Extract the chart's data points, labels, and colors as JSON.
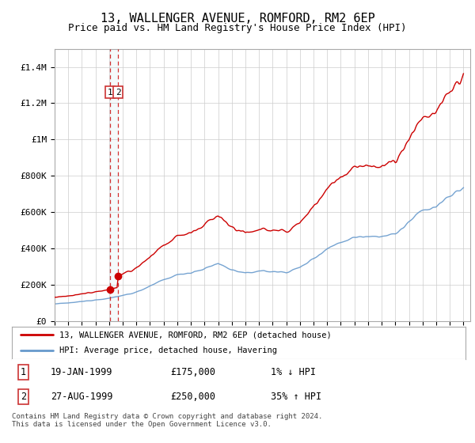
{
  "title": "13, WALLENGER AVENUE, ROMFORD, RM2 6EP",
  "subtitle": "Price paid vs. HM Land Registry's House Price Index (HPI)",
  "title_fontsize": 11,
  "subtitle_fontsize": 9,
  "ylim": [
    0,
    1500000
  ],
  "yticks": [
    0,
    200000,
    400000,
    600000,
    800000,
    1000000,
    1200000,
    1400000
  ],
  "ytick_labels": [
    "£0",
    "£200K",
    "£400K",
    "£600K",
    "£800K",
    "£1M",
    "£1.2M",
    "£1.4M"
  ],
  "xlim_start": 1995.0,
  "xlim_end": 2025.5,
  "line_color_property": "#cc0000",
  "line_color_hpi": "#6699cc",
  "transaction1_x": 1999.05,
  "transaction1_price": 175000,
  "transaction1_date": "19-JAN-1999",
  "transaction1_hpi": "1% ↓ HPI",
  "transaction2_x": 1999.65,
  "transaction2_price": 250000,
  "transaction2_date": "27-AUG-1999",
  "transaction2_hpi": "35% ↑ HPI",
  "legend_label_property": "13, WALLENGER AVENUE, ROMFORD, RM2 6EP (detached house)",
  "legend_label_hpi": "HPI: Average price, detached house, Havering",
  "footer": "Contains HM Land Registry data © Crown copyright and database right 2024.\nThis data is licensed under the Open Government Licence v3.0.",
  "background_color": "#ffffff",
  "grid_color": "#cccccc",
  "years_hpi": [
    1995,
    1995.08,
    1995.17,
    1995.25,
    1995.33,
    1995.42,
    1995.5,
    1995.58,
    1995.67,
    1995.75,
    1995.83,
    1995.92,
    1996,
    1996.08,
    1996.17,
    1996.25,
    1996.33,
    1996.42,
    1996.5,
    1996.58,
    1996.67,
    1996.75,
    1996.83,
    1996.92,
    1997,
    1997.08,
    1997.17,
    1997.25,
    1997.33,
    1997.42,
    1997.5,
    1997.58,
    1997.67,
    1997.75,
    1997.83,
    1997.92,
    1998,
    1998.08,
    1998.17,
    1998.25,
    1998.33,
    1998.42,
    1998.5,
    1998.58,
    1998.67,
    1998.75,
    1998.83,
    1998.92,
    1999,
    1999.08,
    1999.17,
    1999.25,
    1999.33,
    1999.42,
    1999.5,
    1999.58,
    1999.67,
    1999.75,
    1999.83,
    1999.92,
    2000,
    2000.08,
    2000.17,
    2000.25,
    2000.33,
    2000.42,
    2000.5,
    2000.58,
    2000.67,
    2000.75,
    2000.83,
    2000.92,
    2001,
    2001.08,
    2001.17,
    2001.25,
    2001.33,
    2001.42,
    2001.5,
    2001.58,
    2001.67,
    2001.75,
    2001.83,
    2001.92,
    2002,
    2002.08,
    2002.17,
    2002.25,
    2002.33,
    2002.42,
    2002.5,
    2002.58,
    2002.67,
    2002.75,
    2002.83,
    2002.92,
    2003,
    2003.08,
    2003.17,
    2003.25,
    2003.33,
    2003.42,
    2003.5,
    2003.58,
    2003.67,
    2003.75,
    2003.83,
    2003.92,
    2004,
    2004.08,
    2004.17,
    2004.25,
    2004.33,
    2004.42,
    2004.5,
    2004.58,
    2004.67,
    2004.75,
    2004.83,
    2004.92,
    2005,
    2005.08,
    2005.17,
    2005.25,
    2005.33,
    2005.42,
    2005.5,
    2005.58,
    2005.67,
    2005.75,
    2005.83,
    2005.92,
    2006,
    2006.08,
    2006.17,
    2006.25,
    2006.33,
    2006.42,
    2006.5,
    2006.58,
    2006.67,
    2006.75,
    2006.83,
    2006.92,
    2007,
    2007.08,
    2007.17,
    2007.25,
    2007.33,
    2007.42,
    2007.5,
    2007.58,
    2007.67,
    2007.75,
    2007.83,
    2007.92,
    2008,
    2008.08,
    2008.17,
    2008.25,
    2008.33,
    2008.42,
    2008.5,
    2008.58,
    2008.67,
    2008.75,
    2008.83,
    2008.92,
    2009,
    2009.08,
    2009.17,
    2009.25,
    2009.33,
    2009.42,
    2009.5,
    2009.58,
    2009.67,
    2009.75,
    2009.83,
    2009.92,
    2010,
    2010.08,
    2010.17,
    2010.25,
    2010.33,
    2010.42,
    2010.5,
    2010.58,
    2010.67,
    2010.75,
    2010.83,
    2010.92,
    2011,
    2011.08,
    2011.17,
    2011.25,
    2011.33,
    2011.42,
    2011.5,
    2011.58,
    2011.67,
    2011.75,
    2011.83,
    2011.92,
    2012,
    2012.08,
    2012.17,
    2012.25,
    2012.33,
    2012.42,
    2012.5,
    2012.58,
    2012.67,
    2012.75,
    2012.83,
    2012.92,
    2013,
    2013.08,
    2013.17,
    2013.25,
    2013.33,
    2013.42,
    2013.5,
    2013.58,
    2013.67,
    2013.75,
    2013.83,
    2013.92,
    2014,
    2014.08,
    2014.17,
    2014.25,
    2014.33,
    2014.42,
    2014.5,
    2014.58,
    2014.67,
    2014.75,
    2014.83,
    2014.92,
    2015,
    2015.08,
    2015.17,
    2015.25,
    2015.33,
    2015.42,
    2015.5,
    2015.58,
    2015.67,
    2015.75,
    2015.83,
    2015.92,
    2016,
    2016.08,
    2016.17,
    2016.25,
    2016.33,
    2016.42,
    2016.5,
    2016.58,
    2016.67,
    2016.75,
    2016.83,
    2016.92,
    2017,
    2017.08,
    2017.17,
    2017.25,
    2017.33,
    2017.42,
    2017.5,
    2017.58,
    2017.67,
    2017.75,
    2017.83,
    2017.92,
    2018,
    2018.08,
    2018.17,
    2018.25,
    2018.33,
    2018.42,
    2018.5,
    2018.58,
    2018.67,
    2018.75,
    2018.83,
    2018.92,
    2019,
    2019.08,
    2019.17,
    2019.25,
    2019.33,
    2019.42,
    2019.5,
    2019.58,
    2019.67,
    2019.75,
    2019.83,
    2019.92,
    2020,
    2020.08,
    2020.17,
    2020.25,
    2020.33,
    2020.42,
    2020.5,
    2020.58,
    2020.67,
    2020.75,
    2020.83,
    2020.92,
    2021,
    2021.08,
    2021.17,
    2021.25,
    2021.33,
    2021.42,
    2021.5,
    2021.58,
    2021.67,
    2021.75,
    2021.83,
    2021.92,
    2022,
    2022.08,
    2022.17,
    2022.25,
    2022.33,
    2022.42,
    2022.5,
    2022.58,
    2022.67,
    2022.75,
    2022.83,
    2022.92,
    2023,
    2023.08,
    2023.17,
    2023.25,
    2023.33,
    2023.42,
    2023.5,
    2023.58,
    2023.67,
    2023.75,
    2023.83,
    2023.92,
    2024,
    2024.08,
    2024.17,
    2024.25,
    2024.33,
    2024.42,
    2024.5,
    2024.58,
    2024.67,
    2024.75,
    2024.83,
    2024.92,
    2025
  ]
}
